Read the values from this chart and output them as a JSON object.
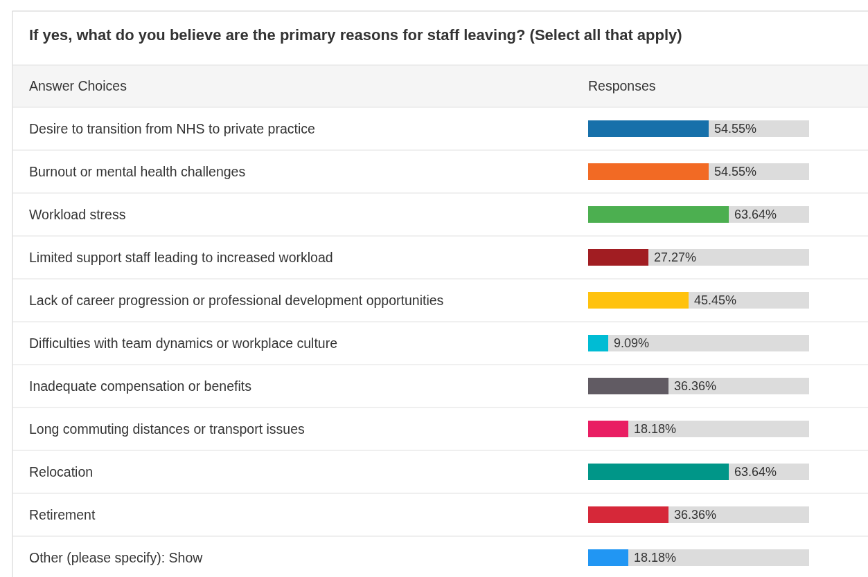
{
  "chart_data": {
    "type": "bar",
    "orientation": "horizontal",
    "title": "If yes, what do you believe are the primary reasons for staff leaving? (Select all that apply)",
    "ylabel": "Answer Choices",
    "xlabel": "Responses",
    "categories": [
      "Desire to transition from NHS to private practice",
      "Burnout or mental health challenges",
      "Workload stress",
      "Limited support staff leading to increased workload",
      "Lack of career progression or professional development opportunities",
      "Difficulties with team dynamics or workplace culture",
      "Inadequate compensation or benefits",
      "Long commuting distances or transport issues",
      "Relocation",
      "Retirement",
      "Other (please specify): Show"
    ],
    "values": [
      54.55,
      54.55,
      63.64,
      27.27,
      45.45,
      9.09,
      36.36,
      18.18,
      63.64,
      36.36,
      18.18
    ],
    "value_labels": [
      "54.55%",
      "54.55%",
      "63.64%",
      "27.27%",
      "45.45%",
      "9.09%",
      "36.36%",
      "18.18%",
      "63.64%",
      "36.36%",
      "18.18%"
    ],
    "colors": [
      "#1770aa",
      "#f26a24",
      "#4caf50",
      "#a11d22",
      "#ffc20e",
      "#00bcd4",
      "#615b63",
      "#e91e63",
      "#009688",
      "#d62839",
      "#2196f3"
    ],
    "xlim": [
      0,
      100
    ]
  }
}
